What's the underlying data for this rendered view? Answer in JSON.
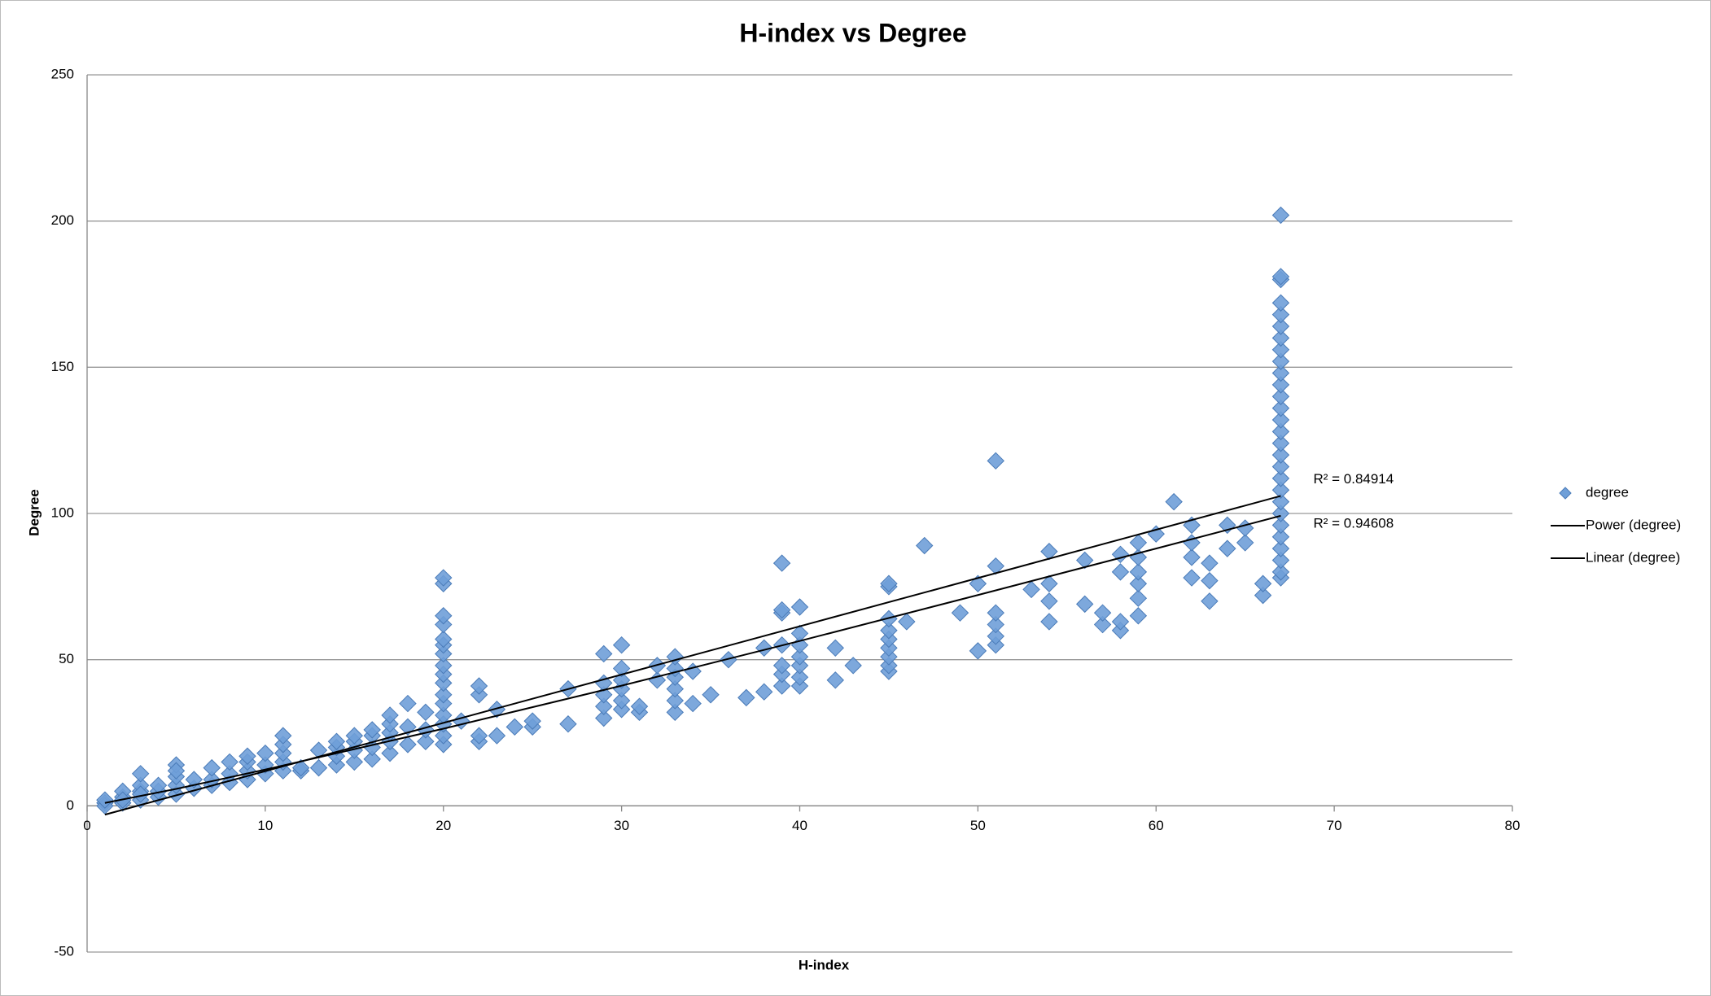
{
  "chart_data": {
    "type": "scatter",
    "title": "H-index vs Degree",
    "x_label": "H-index",
    "y_label": "Degree",
    "xlim": [
      0,
      80
    ],
    "xticks": [
      0,
      10,
      20,
      30,
      40,
      50,
      60,
      70,
      80
    ],
    "ylim": [
      -50,
      250
    ],
    "yticks": [
      -50,
      0,
      50,
      100,
      150,
      200,
      250
    ],
    "grid": true,
    "legend": "right",
    "series": [
      {
        "name": "degree",
        "color": "#6f9fd8",
        "marker": "diamond",
        "x": [
          1,
          1,
          1,
          2,
          2,
          2,
          2,
          3,
          3,
          3,
          3,
          3,
          4,
          4,
          4,
          5,
          5,
          5,
          5,
          5,
          6,
          6,
          7,
          7,
          7,
          8,
          8,
          8,
          9,
          9,
          9,
          9,
          10,
          10,
          10,
          11,
          11,
          11,
          11,
          11,
          12,
          12,
          13,
          13,
          14,
          14,
          14,
          14,
          15,
          15,
          15,
          15,
          16,
          16,
          16,
          16,
          17,
          17,
          17,
          17,
          17,
          18,
          18,
          18,
          19,
          19,
          19,
          20,
          20,
          20,
          20,
          20,
          20,
          20,
          20,
          20,
          20,
          20,
          20,
          20,
          20,
          20,
          20,
          21,
          22,
          22,
          22,
          22,
          23,
          23,
          24,
          25,
          25,
          27,
          27,
          29,
          29,
          29,
          29,
          29,
          30,
          30,
          30,
          30,
          30,
          30,
          31,
          31,
          32,
          32,
          33,
          33,
          33,
          33,
          33,
          33,
          34,
          34,
          35,
          36,
          37,
          38,
          38,
          39,
          39,
          39,
          39,
          39,
          39,
          39,
          40,
          40,
          40,
          40,
          40,
          40,
          40,
          42,
          42,
          43,
          45,
          45,
          45,
          45,
          45,
          45,
          45,
          45,
          45,
          46,
          47,
          49,
          50,
          50,
          51,
          51,
          51,
          51,
          51,
          51,
          53,
          54,
          54,
          54,
          54,
          56,
          56,
          57,
          57,
          58,
          58,
          58,
          58,
          59,
          59,
          59,
          59,
          59,
          59,
          60,
          61,
          62,
          62,
          62,
          62,
          63,
          63,
          63,
          64,
          64,
          65,
          65,
          66,
          66,
          67,
          67,
          67,
          67,
          67,
          67,
          67,
          67,
          67,
          67,
          67,
          67,
          67,
          67,
          67,
          67,
          67,
          67,
          67,
          67,
          67,
          67,
          67,
          67,
          67,
          67,
          67,
          67
        ],
        "values": [
          1,
          0,
          2,
          1,
          3,
          5,
          2,
          2,
          5,
          7,
          11,
          4,
          3,
          5,
          7,
          4,
          7,
          10,
          14,
          12,
          6,
          9,
          7,
          9,
          13,
          8,
          11,
          15,
          9,
          12,
          15,
          17,
          11,
          14,
          18,
          12,
          15,
          18,
          21,
          24,
          12,
          13,
          13,
          19,
          14,
          17,
          20,
          22,
          15,
          19,
          22,
          24,
          16,
          20,
          24,
          26,
          18,
          22,
          25,
          28,
          31,
          21,
          27,
          35,
          22,
          26,
          32,
          21,
          24,
          28,
          31,
          35,
          38,
          42,
          45,
          48,
          52,
          55,
          57,
          62,
          65,
          76,
          78,
          29,
          22,
          24,
          38,
          41,
          24,
          33,
          27,
          27,
          29,
          28,
          40,
          30,
          34,
          38,
          42,
          52,
          33,
          36,
          40,
          43,
          47,
          55,
          32,
          34,
          43,
          48,
          32,
          36,
          40,
          44,
          47,
          51,
          35,
          46,
          38,
          50,
          37,
          39,
          54,
          41,
          45,
          48,
          55,
          66,
          67,
          83,
          41,
          44,
          48,
          51,
          55,
          59,
          68,
          43,
          54,
          48,
          46,
          48,
          51,
          54,
          57,
          60,
          64,
          75,
          76,
          63,
          89,
          66,
          53,
          76,
          55,
          58,
          62,
          66,
          82,
          118,
          74,
          63,
          70,
          76,
          87,
          69,
          84,
          62,
          66,
          60,
          63,
          80,
          86,
          65,
          71,
          76,
          80,
          85,
          90,
          93,
          104,
          78,
          85,
          90,
          96,
          70,
          77,
          83,
          88,
          96,
          90,
          95,
          72,
          76,
          78,
          80,
          84,
          88,
          92,
          96,
          100,
          104,
          108,
          112,
          116,
          120,
          124,
          128,
          132,
          136,
          140,
          144,
          148,
          152,
          156,
          160,
          164,
          168,
          172,
          180,
          181,
          202
        ]
      },
      {
        "name": "Power (degree)",
        "color": "#000000",
        "marker": "line",
        "label": "R² = 0.94608",
        "x": [
          1,
          5,
          10,
          20,
          30,
          40,
          50,
          60,
          67
        ],
        "values": [
          1,
          5.8,
          12.4,
          26.4,
          41.1,
          56.4,
          72.1,
          88,
          99.2
        ]
      },
      {
        "name": "Linear (degree)",
        "color": "#000000",
        "marker": "line",
        "label": "R² = 0.84914",
        "x": [
          1,
          67
        ],
        "values": [
          -3,
          106
        ]
      }
    ]
  }
}
